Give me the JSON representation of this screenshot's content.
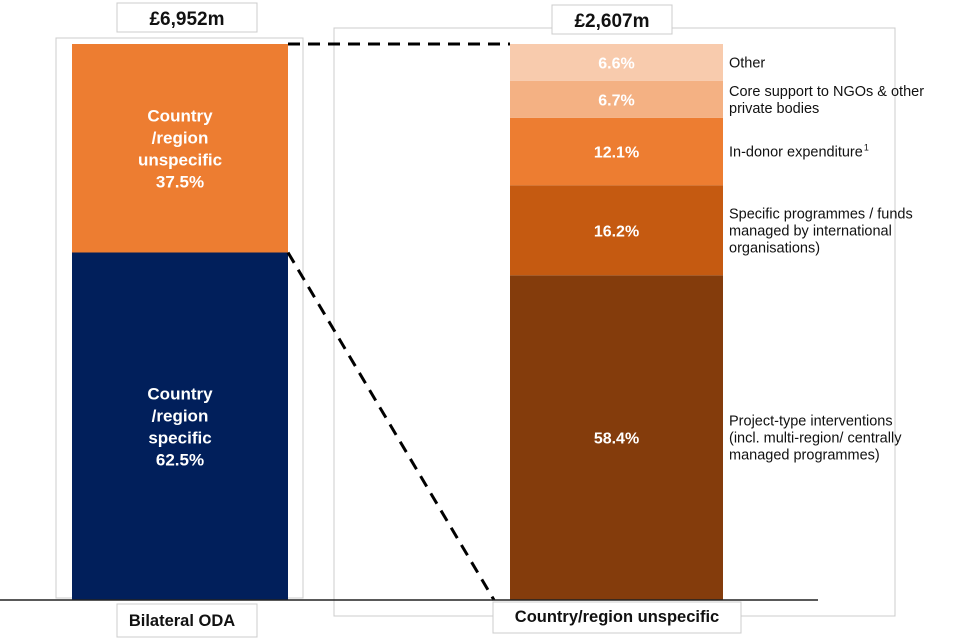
{
  "chart_data": [
    {
      "type": "bar",
      "stacked": true,
      "category": "Bilateral ODA",
      "total": "£6,952m",
      "unit": "%",
      "series": [
        {
          "name": "Country /region specific",
          "lines": [
            "Country",
            "/region",
            "specific"
          ],
          "value": 62.5,
          "label": "62.5%",
          "color": "#011F5B"
        },
        {
          "name": "Country /region unspecific",
          "lines": [
            "Country",
            "/region",
            "unspecific"
          ],
          "value": 37.5,
          "label": "37.5%",
          "color": "#ED7D31"
        }
      ]
    },
    {
      "type": "bar",
      "stacked": true,
      "category": "Country/region unspecific",
      "total": "£2,607m",
      "unit": "%",
      "series": [
        {
          "name": "Project-type interventions (incl. multi-region/ centrally managed programmes)",
          "lines": [
            "Project-type interventions",
            "(incl. multi-region/ centrally",
            "managed programmes)"
          ],
          "value": 58.4,
          "label": "58.4%",
          "color": "#843C0C"
        },
        {
          "name": "Specific programmes / funds managed by international organisations)",
          "lines": [
            "Specific programmes / funds",
            "managed by international",
            "organisations)"
          ],
          "value": 16.2,
          "label": "16.2%",
          "color": "#C55A11"
        },
        {
          "name": "In-donor expenditure",
          "lines": [
            "In-donor expenditure"
          ],
          "superscript": "1",
          "value": 12.1,
          "label": "12.1%",
          "color": "#ED7D31"
        },
        {
          "name": "Core support to NGOs & other private bodies",
          "lines": [
            "Core support to NGOs & other",
            "private bodies"
          ],
          "value": 6.7,
          "label": "6.7%",
          "color": "#F4B183"
        },
        {
          "name": "Other",
          "lines": [
            "Other"
          ],
          "value": 6.6,
          "label": "6.6%",
          "color": "#F8CBAD"
        }
      ]
    }
  ],
  "colors": {
    "text": "#111111",
    "frame": "#cccccc",
    "connector": "#000000"
  }
}
